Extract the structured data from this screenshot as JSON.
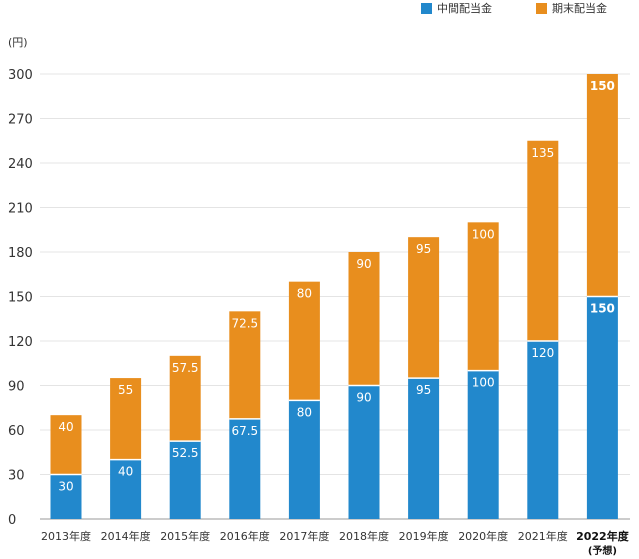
{
  "legend": [
    {
      "label": "中間配当金",
      "color": "#2288cc"
    },
    {
      "label": "期末配当金",
      "color": "#e88e1e"
    }
  ],
  "chart_data": {
    "type": "bar",
    "stacked": true,
    "unit_label": "(円)",
    "categories": [
      "2013年度",
      "2014年度",
      "2015年度",
      "2016年度",
      "2017年度",
      "2018年度",
      "2019年度",
      "2020年度",
      "2021年度",
      "2022年度"
    ],
    "category_notes": [
      "",
      "",
      "",
      "",
      "",
      "",
      "",
      "",
      "",
      "(予想)"
    ],
    "highlight_category": 9,
    "series": [
      {
        "name": "中間配当金",
        "color": "#2288cc",
        "values": [
          30,
          40,
          52.5,
          67.5,
          80,
          90,
          95,
          100,
          120,
          150
        ],
        "labels": [
          "30",
          "40",
          "52.5",
          "67.5",
          "80",
          "90",
          "95",
          "100",
          "120",
          "150"
        ]
      },
      {
        "name": "期末配当金",
        "color": "#e88e1e",
        "values": [
          40,
          55,
          57.5,
          72.5,
          80,
          90,
          95,
          100,
          135,
          150
        ],
        "labels": [
          "40",
          "55",
          "57.5",
          "72.5",
          "80",
          "90",
          "95",
          "100",
          "135",
          "150"
        ]
      }
    ],
    "yticks": [
      "0",
      "30",
      "60",
      "90",
      "120",
      "150",
      "180",
      "210",
      "240",
      "270",
      "300"
    ],
    "ylim": [
      0,
      300
    ],
    "grid": true,
    "legend_position": "top-right"
  }
}
